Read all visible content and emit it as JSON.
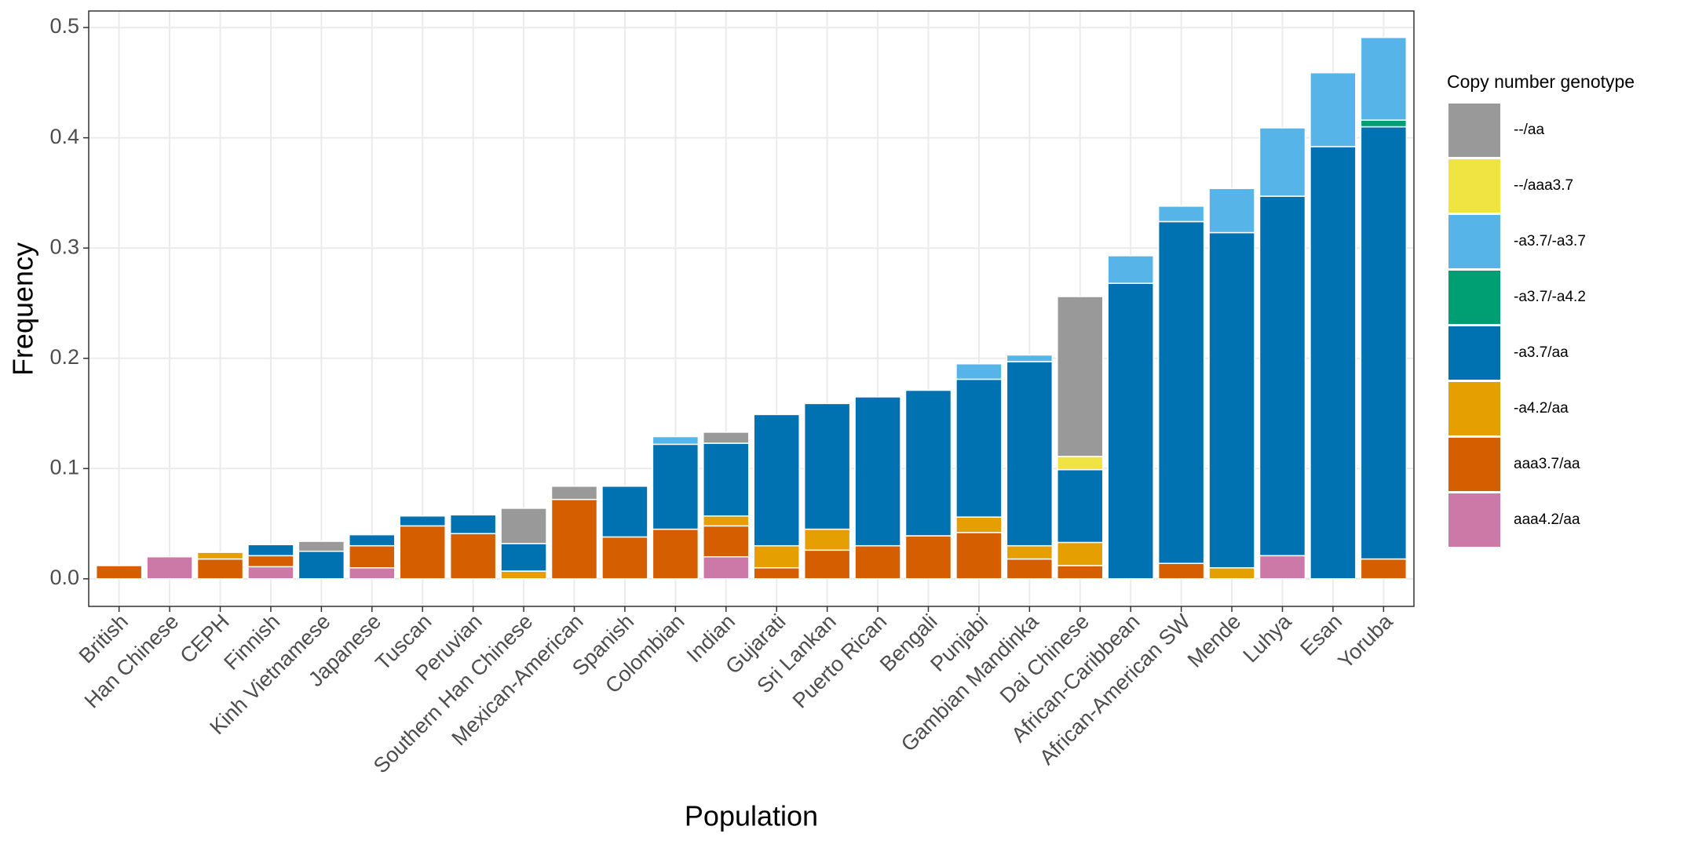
{
  "chart_data": {
    "type": "stacked_bar",
    "x_label": "Population",
    "y_label": "Frequency",
    "legend_title": "Copy number genotype",
    "categories": [
      "British",
      "Han Chinese",
      "CEPH",
      "Finnish",
      "Kinh Vietnamese",
      "Japanese",
      "Tuscan",
      "Peruvian",
      "Southern Han Chinese",
      "Mexican-American",
      "Spanish",
      "Colombian",
      "Indian",
      "Gujarati",
      "Sri Lankan",
      "Puerto Rican",
      "Bengali",
      "Punjabi",
      "Gambian Mandinka",
      "Dai Chinese",
      "African-Caribbean",
      "African-American SW",
      "Mende",
      "Luhya",
      "Esan",
      "Yoruba"
    ],
    "series": [
      {
        "name": "--/aa",
        "color": "#999999",
        "values": [
          0,
          0,
          0,
          0,
          0.009,
          0,
          0,
          0,
          0.032,
          0.012,
          0,
          0,
          0.01,
          0,
          0,
          0,
          0,
          0,
          0,
          0.145,
          0,
          0,
          0,
          0,
          0,
          0
        ]
      },
      {
        "name": "--/aaa3.7",
        "color": "#F0E442",
        "values": [
          0,
          0,
          0,
          0,
          0,
          0,
          0,
          0,
          0,
          0,
          0,
          0,
          0,
          0,
          0,
          0,
          0,
          0,
          0,
          0.012,
          0,
          0,
          0,
          0,
          0,
          0
        ]
      },
      {
        "name": "-a3.7/-a3.7",
        "color": "#56B4E9",
        "values": [
          0,
          0,
          0,
          0,
          0,
          0,
          0,
          0,
          0,
          0,
          0,
          0.007,
          0,
          0,
          0,
          0,
          0,
          0.014,
          0.006,
          0,
          0.025,
          0.014,
          0.04,
          0.062,
          0.067,
          0.075
        ]
      },
      {
        "name": "-a3.7/-a4.2",
        "color": "#009E73",
        "values": [
          0,
          0,
          0,
          0,
          0,
          0,
          0,
          0,
          0,
          0,
          0,
          0,
          0,
          0,
          0,
          0,
          0,
          0,
          0,
          0,
          0,
          0,
          0,
          0,
          0,
          0.006
        ]
      },
      {
        "name": "-a3.7/aa",
        "color": "#0072B2",
        "values": [
          0,
          0,
          0,
          0.01,
          0.025,
          0.01,
          0.009,
          0.017,
          0.025,
          0,
          0.046,
          0.077,
          0.066,
          0.119,
          0.114,
          0.135,
          0.132,
          0.125,
          0.167,
          0.066,
          0.268,
          0.31,
          0.304,
          0.326,
          0.392,
          0.392
        ]
      },
      {
        "name": "-a4.2/aa",
        "color": "#E69F00",
        "values": [
          0,
          0,
          0.006,
          0,
          0,
          0,
          0,
          0,
          0.007,
          0,
          0,
          0,
          0.009,
          0.02,
          0.019,
          0,
          0,
          0.014,
          0.012,
          0.021,
          0,
          0,
          0.01,
          0,
          0,
          0
        ]
      },
      {
        "name": "aaa3.7/aa",
        "color": "#D55E00",
        "values": [
          0.012,
          0,
          0.018,
          0.01,
          0,
          0.02,
          0.048,
          0.041,
          0,
          0.072,
          0.038,
          0.045,
          0.028,
          0.01,
          0.026,
          0.03,
          0.039,
          0.042,
          0.018,
          0.012,
          0,
          0.014,
          0,
          0,
          0,
          0.018
        ]
      },
      {
        "name": "aaa4.2/aa",
        "color": "#CC79A7",
        "values": [
          0,
          0.02,
          0,
          0.011,
          0,
          0.01,
          0,
          0,
          0,
          0,
          0,
          0,
          0.02,
          0,
          0,
          0,
          0,
          0,
          0,
          0,
          0,
          0,
          0,
          0.021,
          0,
          0
        ]
      }
    ],
    "ylim": [
      -0.025,
      0.515
    ],
    "yticks": [
      {
        "value": 0,
        "label": "0.0"
      },
      0.1,
      0.2,
      0.3,
      0.4,
      0.5
    ],
    "grid": true
  }
}
